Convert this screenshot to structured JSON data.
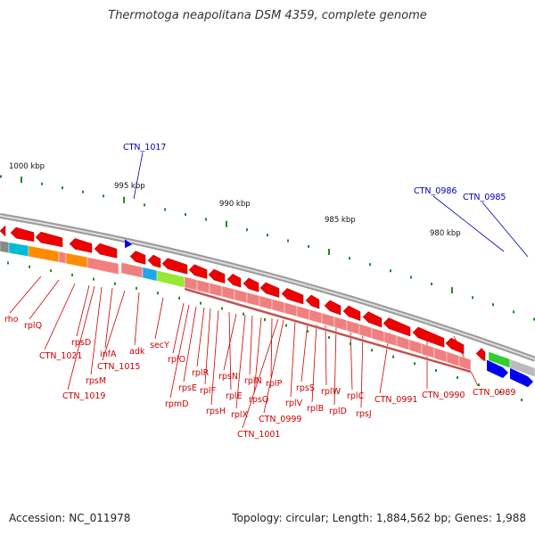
{
  "title": "Thermotoga neapolitana DSM 4359, complete genome",
  "footer": {
    "accession": "Accession: NC_011978",
    "summary": "Topology: circular; Length: 1,884,562 bp; Genes: 1,988"
  },
  "scale_labels": [
    "1000 kbp",
    "995 kbp",
    "990 kbp",
    "985 kbp",
    "980 kbp"
  ],
  "top_labels": [
    "CTN_1017",
    "CTN_0986",
    "CTN_0985"
  ],
  "gene_labels": [
    "rho",
    "rplQ",
    "CTN_1021",
    "rpsD",
    "CTN_1019",
    "rpsM",
    "infA",
    "CTN_1015",
    "adk",
    "secY",
    "rplO",
    "rpmD",
    "rpsE",
    "rplR",
    "rplF",
    "rpsH",
    "rplE",
    "rpsN",
    "rplX",
    "rplN",
    "rpsQ",
    "rplP",
    "CTN_1001",
    "CTN_0999",
    "rplV",
    "rpsS",
    "rplB",
    "rplW",
    "rplD",
    "rplC",
    "rpsJ",
    "CTN_0991",
    "CTN_0990",
    "CTN_0989"
  ],
  "colors": {
    "gene_red": "#ee0000",
    "cds_pink": "#f08080",
    "cds_dark_pink": "#c05050",
    "orange": "#ff8c00",
    "cyan": "#00bcd4",
    "sky_blue": "#1ea7e8",
    "lime": "#99e633",
    "green": "#33cc33",
    "blue_gene": "#0000ee",
    "tick_green": "#228b22",
    "backbone": "#9a9a9a"
  }
}
